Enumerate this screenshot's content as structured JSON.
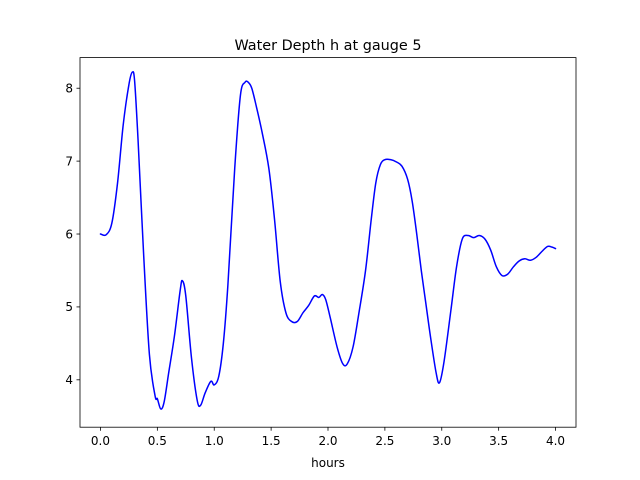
{
  "chart_data": {
    "type": "line",
    "title": "Water Depth h at gauge 5",
    "xlabel": "hours",
    "ylabel": "",
    "xlim": [
      -0.18,
      4.18
    ],
    "ylim": [
      3.35,
      8.42
    ],
    "xticks": [
      0.0,
      0.5,
      1.0,
      1.5,
      2.0,
      2.5,
      3.0,
      3.5,
      4.0
    ],
    "xtick_labels": [
      "0.0",
      "0.5",
      "1.0",
      "1.5",
      "2.0",
      "2.5",
      "3.0",
      "3.5",
      "4.0"
    ],
    "yticks": [
      4,
      5,
      6,
      7,
      8
    ],
    "ytick_labels": [
      "4",
      "5",
      "6",
      "7",
      "8"
    ],
    "grid": false,
    "series": [
      {
        "color": "#0000ff",
        "x": [
          0.0,
          0.05,
          0.1,
          0.15,
          0.2,
          0.25,
          0.28,
          0.3,
          0.33,
          0.38,
          0.43,
          0.48,
          0.5,
          0.53,
          0.56,
          0.6,
          0.65,
          0.7,
          0.72,
          0.75,
          0.8,
          0.85,
          0.88,
          0.92,
          0.97,
          1.0,
          1.04,
          1.08,
          1.12,
          1.18,
          1.23,
          1.27,
          1.3,
          1.33,
          1.37,
          1.42,
          1.48,
          1.53,
          1.58,
          1.63,
          1.68,
          1.73,
          1.78,
          1.83,
          1.88,
          1.92,
          1.95,
          1.98,
          2.02,
          2.08,
          2.13,
          2.17,
          2.22,
          2.27,
          2.33,
          2.38,
          2.42,
          2.46,
          2.5,
          2.55,
          2.6,
          2.65,
          2.7,
          2.74,
          2.78,
          2.82,
          2.86,
          2.9,
          2.95,
          2.98,
          3.02,
          3.08,
          3.13,
          3.18,
          3.23,
          3.28,
          3.33,
          3.38,
          3.43,
          3.48,
          3.53,
          3.58,
          3.63,
          3.68,
          3.73,
          3.78,
          3.83,
          3.88,
          3.93,
          3.97,
          4.0
        ],
        "y": [
          6.0,
          5.99,
          6.15,
          6.7,
          7.5,
          8.05,
          8.22,
          8.1,
          7.3,
          5.7,
          4.35,
          3.78,
          3.74,
          3.6,
          3.7,
          4.1,
          4.6,
          5.22,
          5.36,
          5.15,
          4.3,
          3.72,
          3.65,
          3.82,
          3.98,
          3.93,
          4.05,
          4.5,
          5.3,
          6.9,
          7.9,
          8.08,
          8.08,
          8.0,
          7.75,
          7.4,
          6.9,
          6.2,
          5.35,
          4.92,
          4.8,
          4.8,
          4.92,
          5.02,
          5.15,
          5.13,
          5.17,
          5.1,
          4.85,
          4.45,
          4.22,
          4.22,
          4.45,
          4.9,
          5.5,
          6.2,
          6.7,
          6.95,
          7.02,
          7.02,
          6.99,
          6.93,
          6.75,
          6.45,
          6.0,
          5.5,
          5.05,
          4.6,
          4.1,
          3.96,
          4.25,
          4.95,
          5.55,
          5.93,
          5.98,
          5.95,
          5.98,
          5.93,
          5.78,
          5.55,
          5.43,
          5.45,
          5.55,
          5.63,
          5.66,
          5.64,
          5.68,
          5.76,
          5.83,
          5.82,
          5.8
        ]
      }
    ]
  }
}
